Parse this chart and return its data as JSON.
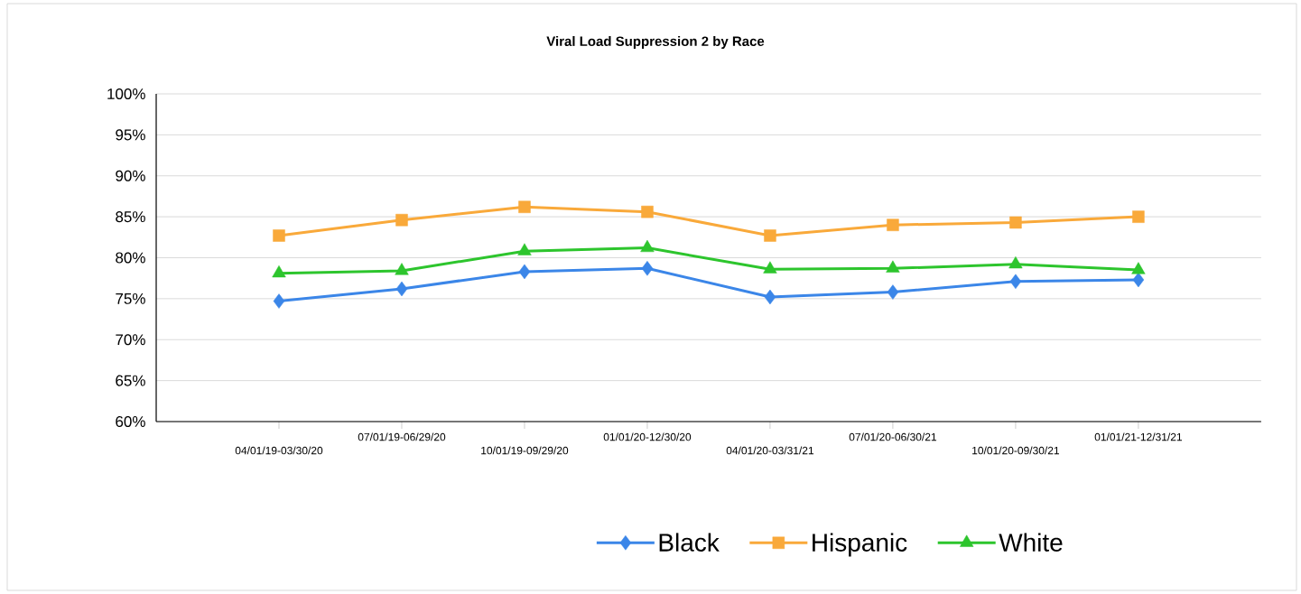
{
  "chart_data": {
    "type": "line",
    "title": "Viral Load Suppression 2 by Race",
    "categories": [
      "04/01/19-03/30/20",
      "07/01/19-06/29/20",
      "10/01/19-09/29/20",
      "01/01/20-12/30/20",
      "04/01/20-03/31/21",
      "07/01/20-06/30/21",
      "10/01/20-09/30/21",
      "01/01/21-12/31/21"
    ],
    "series": [
      {
        "name": "Black",
        "color": "#3b86e8",
        "marker": "diamond",
        "values": [
          74.7,
          76.2,
          78.3,
          78.7,
          75.2,
          75.8,
          77.1,
          77.3
        ]
      },
      {
        "name": "Hispanic",
        "color": "#f9a93a",
        "marker": "square",
        "values": [
          82.7,
          84.6,
          86.2,
          85.6,
          82.7,
          84.0,
          84.3,
          85.0
        ]
      },
      {
        "name": "White",
        "color": "#2dc52d",
        "marker": "triangle",
        "values": [
          78.1,
          78.4,
          80.8,
          81.2,
          78.6,
          78.7,
          79.2,
          78.5
        ]
      }
    ],
    "ylim": [
      60,
      100
    ],
    "yticks": [
      {
        "value": 60,
        "label": "60%"
      },
      {
        "value": 65,
        "label": "65%"
      },
      {
        "value": 70,
        "label": "70%"
      },
      {
        "value": 75,
        "label": "75%"
      },
      {
        "value": 80,
        "label": "80%"
      },
      {
        "value": 85,
        "label": "85%"
      },
      {
        "value": 90,
        "label": "90%"
      },
      {
        "value": 95,
        "label": "95%"
      },
      {
        "value": 100,
        "label": "100%"
      }
    ],
    "grid": "y",
    "legend": "bottom",
    "line_style": "solid"
  }
}
